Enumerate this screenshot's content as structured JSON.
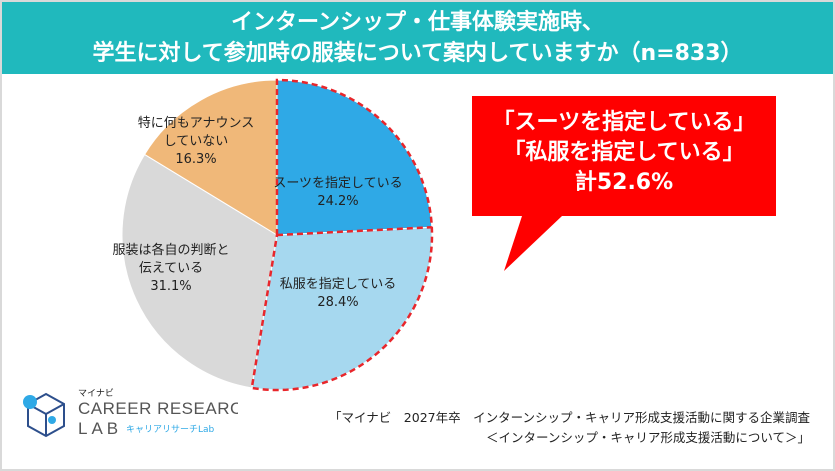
{
  "header": {
    "line1": "インターンシップ・仕事体験実施時、",
    "line2": "学生に対して参加時の服装について案内していますか（n=833）"
  },
  "chart_data": {
    "type": "pie",
    "title": "インターンシップ・仕事体験実施時、学生に対して参加時の服装について案内していますか（n=833）",
    "slices": [
      {
        "label": "スーツを指定している",
        "value": 24.2,
        "display": "24.2%",
        "color": "#2fa9e6"
      },
      {
        "label": "私服を指定している",
        "value": 28.4,
        "display": "28.4%",
        "color": "#a6d8ef"
      },
      {
        "label": "服装は各自の判断と伝えている",
        "value": 31.1,
        "display": "31.1%",
        "color": "#d9d9d9"
      },
      {
        "label": "特に何もアナウンスしていない",
        "value": 16.3,
        "display": "16.3%",
        "color": "#f0b879"
      }
    ]
  },
  "callout": {
    "line1": "「スーツを指定している」",
    "line2": "「私服を指定している」",
    "line3": "計52.6%",
    "color": "#ff0000"
  },
  "logo": {
    "brand_small": "マイナビ",
    "line1": "CAREER RESEARCH",
    "line2": "LAB",
    "sub": "キャリアリサーチLab"
  },
  "source": {
    "line1": "「マイナビ　2027年卒　インターンシップ・キャリア形成支援活動に関する企業調査",
    "line2": "＜インターンシップ・キャリア形成支援活動について＞」"
  }
}
